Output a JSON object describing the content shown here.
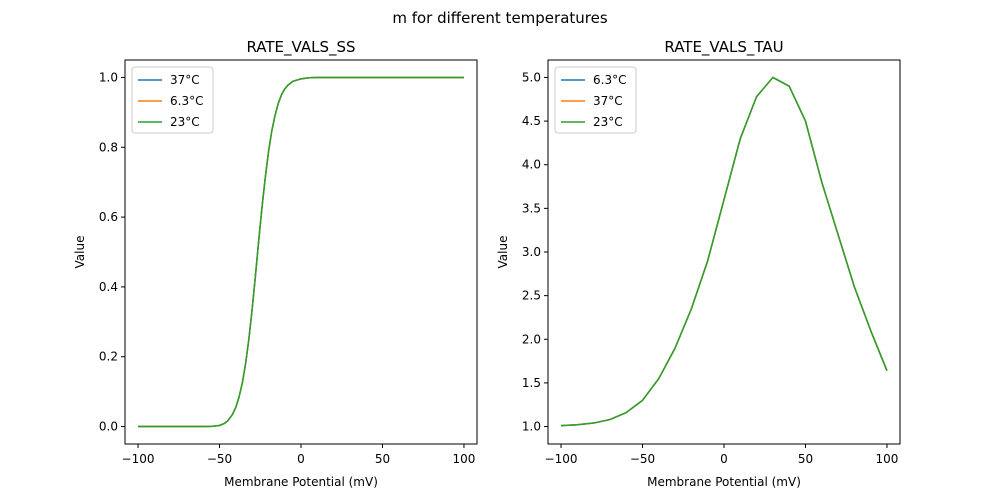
{
  "figure": {
    "title": "m for different temperatures"
  },
  "chart_data": [
    {
      "type": "line",
      "title": "RATE_VALS_SS",
      "xlabel": "Membrane Potential (mV)",
      "ylabel": "Value",
      "xlim": [
        -108,
        108
      ],
      "ylim": [
        -0.05,
        1.05
      ],
      "xticks": [
        -100,
        -50,
        0,
        50,
        100
      ],
      "yticks": [
        0.0,
        0.2,
        0.4,
        0.6,
        0.8,
        1.0
      ],
      "ytick_labels": [
        "0.0",
        "0.2",
        "0.4",
        "0.6",
        "0.8",
        "1.0"
      ],
      "legend_loc": "upper left",
      "x": [
        -100,
        -90,
        -80,
        -70,
        -60,
        -55,
        -50,
        -47,
        -45,
        -42,
        -40,
        -38,
        -36,
        -34,
        -32,
        -30,
        -28,
        -26,
        -24,
        -22,
        -20,
        -18,
        -16,
        -14,
        -12,
        -10,
        -8,
        -5,
        0,
        5,
        10,
        20,
        40,
        60,
        80,
        100
      ],
      "series": [
        {
          "name": "37°C",
          "color": "#1f77b4",
          "values": [
            0,
            0,
            0,
            0,
            0,
            0.0004,
            0.003,
            0.009,
            0.016,
            0.035,
            0.055,
            0.085,
            0.125,
            0.18,
            0.25,
            0.335,
            0.43,
            0.53,
            0.625,
            0.71,
            0.785,
            0.845,
            0.89,
            0.925,
            0.95,
            0.967,
            0.978,
            0.989,
            0.996,
            0.999,
            1,
            1,
            1,
            1,
            1,
            1
          ]
        },
        {
          "name": "6.3°C",
          "color": "#ff7f0e",
          "values": [
            0,
            0,
            0,
            0,
            0,
            0.0004,
            0.003,
            0.009,
            0.016,
            0.035,
            0.055,
            0.085,
            0.125,
            0.18,
            0.25,
            0.335,
            0.43,
            0.53,
            0.625,
            0.71,
            0.785,
            0.845,
            0.89,
            0.925,
            0.95,
            0.967,
            0.978,
            0.989,
            0.996,
            0.999,
            1,
            1,
            1,
            1,
            1,
            1
          ]
        },
        {
          "name": "23°C",
          "color": "#2ca02c",
          "values": [
            0,
            0,
            0,
            0,
            0,
            0.0004,
            0.003,
            0.009,
            0.016,
            0.035,
            0.055,
            0.085,
            0.125,
            0.18,
            0.25,
            0.335,
            0.43,
            0.53,
            0.625,
            0.71,
            0.785,
            0.845,
            0.89,
            0.925,
            0.95,
            0.967,
            0.978,
            0.989,
            0.996,
            0.999,
            1,
            1,
            1,
            1,
            1,
            1
          ]
        }
      ]
    },
    {
      "type": "line",
      "title": "RATE_VALS_TAU",
      "xlabel": "Membrane Potential (mV)",
      "ylabel": "Value",
      "xlim": [
        -108,
        108
      ],
      "ylim": [
        0.8,
        5.2
      ],
      "xticks": [
        -100,
        -50,
        0,
        50,
        100
      ],
      "yticks": [
        1.0,
        1.5,
        2.0,
        2.5,
        3.0,
        3.5,
        4.0,
        4.5,
        5.0
      ],
      "ytick_labels": [
        "1.0",
        "1.5",
        "2.0",
        "2.5",
        "3.0",
        "3.5",
        "4.0",
        "4.5",
        "5.0"
      ],
      "legend_loc": "upper left",
      "x": [
        -100,
        -90,
        -80,
        -70,
        -60,
        -50,
        -40,
        -30,
        -20,
        -10,
        0,
        10,
        20,
        30,
        40,
        50,
        60,
        70,
        80,
        90,
        100
      ],
      "series": [
        {
          "name": "6.3°C",
          "color": "#1f77b4",
          "values": [
            1.01,
            1.02,
            1.04,
            1.08,
            1.16,
            1.3,
            1.55,
            1.9,
            2.35,
            2.9,
            3.6,
            4.3,
            4.78,
            5.0,
            4.9,
            4.5,
            3.8,
            3.2,
            2.6,
            2.1,
            1.64
          ]
        },
        {
          "name": "37°C",
          "color": "#ff7f0e",
          "values": [
            1.01,
            1.02,
            1.04,
            1.08,
            1.16,
            1.3,
            1.55,
            1.9,
            2.35,
            2.9,
            3.6,
            4.3,
            4.78,
            5.0,
            4.9,
            4.5,
            3.8,
            3.2,
            2.6,
            2.1,
            1.64
          ]
        },
        {
          "name": "23°C",
          "color": "#2ca02c",
          "values": [
            1.01,
            1.02,
            1.04,
            1.08,
            1.16,
            1.3,
            1.55,
            1.9,
            2.35,
            2.9,
            3.6,
            4.3,
            4.78,
            5.0,
            4.9,
            4.5,
            3.8,
            3.2,
            2.6,
            2.1,
            1.64
          ]
        }
      ]
    }
  ]
}
